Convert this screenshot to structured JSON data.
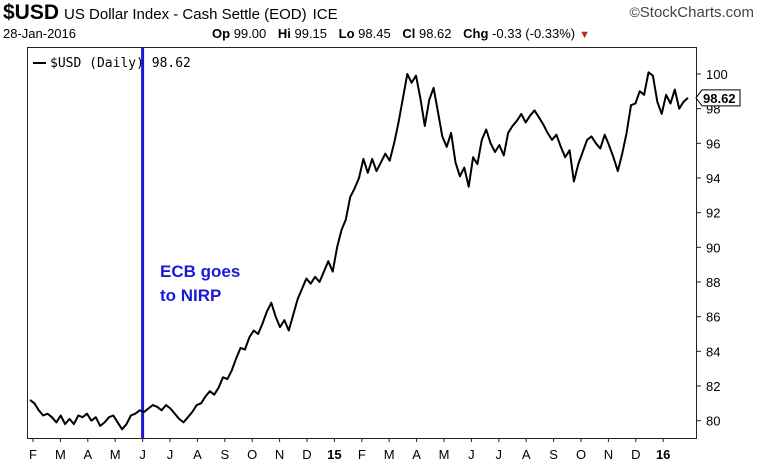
{
  "header": {
    "symbol": "$USD",
    "description": "US Dollar Index - Cash Settle (EOD)",
    "exchange": "ICE",
    "brand": "StockCharts.com",
    "brand_symbol": "©",
    "date": "28-Jan-2016",
    "open_label": "Op",
    "open": "99.00",
    "high_label": "Hi",
    "high": "99.15",
    "low_label": "Lo",
    "low": "98.45",
    "close_label": "Cl",
    "close": "98.62",
    "change_label": "Chg",
    "change": "-0.33 (-0.33%)",
    "change_color": "#b0302a"
  },
  "chart_data": {
    "type": "line",
    "legend": "$USD (Daily) 98.62",
    "legend_position": "top-left",
    "last_value_label": "98.62",
    "ylim": [
      79,
      101.5
    ],
    "y_ticks": [
      80,
      82,
      84,
      86,
      88,
      90,
      92,
      94,
      96,
      98,
      100
    ],
    "x_tick_labels": [
      "F",
      "M",
      "A",
      "M",
      "J",
      "J",
      "A",
      "S",
      "O",
      "N",
      "D",
      "15",
      "F",
      "M",
      "A",
      "M",
      "J",
      "J",
      "A",
      "S",
      "O",
      "N",
      "D",
      "16"
    ],
    "x_tick_bold": [
      "15",
      "16"
    ],
    "grid": false,
    "line_color": "#000000",
    "annotation": {
      "lines": [
        "ECB goes",
        "to NIRP"
      ],
      "color": "#1a1ad6",
      "marker_month": "J"
    },
    "series": [
      {
        "values": [
          81.2,
          81.0,
          80.6,
          80.3,
          80.4,
          80.2,
          79.9,
          80.3,
          79.8,
          80.1,
          79.8,
          80.3,
          80.2,
          80.4,
          80.0,
          80.2,
          79.7,
          79.9,
          80.2,
          80.3,
          79.9,
          79.5,
          79.8,
          80.3,
          80.4,
          80.6,
          80.5,
          80.7,
          80.9,
          80.8,
          80.6,
          80.9,
          80.7,
          80.4,
          80.1,
          79.9,
          80.2,
          80.5,
          80.9,
          81.0,
          81.4,
          81.7,
          81.5,
          81.9,
          82.5,
          82.4,
          82.9,
          83.6,
          84.2,
          84.1,
          84.8,
          85.2,
          85.0,
          85.6,
          86.3,
          86.8,
          86.0,
          85.4,
          85.8,
          85.2,
          86.1,
          87.0,
          87.6,
          88.2,
          87.9,
          88.3,
          88.0,
          88.6,
          89.2,
          88.6,
          90.0,
          91.0,
          91.6,
          92.9,
          93.4,
          94.0,
          95.1,
          94.3,
          95.1,
          94.4,
          94.9,
          95.4,
          95.0,
          96.0,
          97.2,
          98.6,
          100.0,
          99.5,
          99.9,
          98.6,
          97.0,
          98.5,
          99.2,
          97.8,
          96.4,
          95.8,
          96.6,
          94.9,
          94.1,
          94.6,
          93.5,
          95.2,
          94.8,
          96.2,
          96.8,
          96.0,
          95.5,
          95.9,
          95.3,
          96.6,
          97.0,
          97.3,
          97.7,
          97.2,
          97.6,
          97.9,
          97.5,
          97.1,
          96.6,
          96.2,
          96.5,
          95.8,
          95.2,
          95.6,
          93.8,
          94.8,
          95.5,
          96.2,
          96.4,
          96.0,
          95.7,
          96.5,
          95.9,
          95.2,
          94.4,
          95.4,
          96.6,
          98.2,
          98.3,
          99.0,
          98.8,
          100.1,
          99.9,
          98.4,
          97.7,
          98.8,
          98.3,
          99.1,
          98.0,
          98.4,
          98.62
        ]
      }
    ]
  }
}
